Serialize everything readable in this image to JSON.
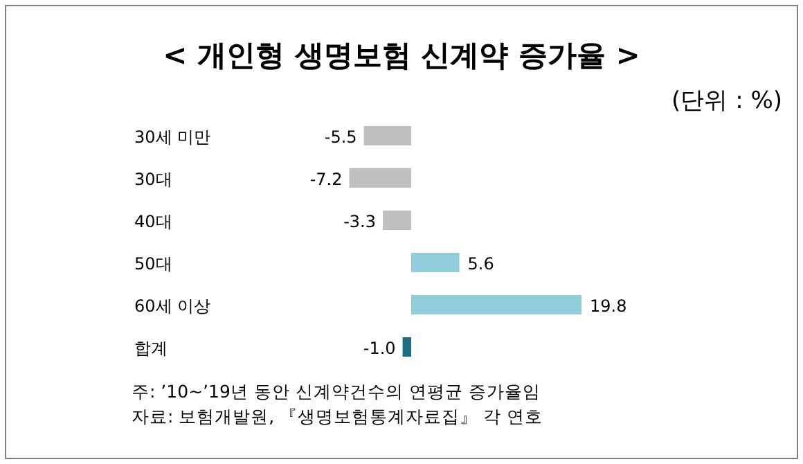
{
  "chart_data": {
    "type": "bar",
    "orientation": "horizontal",
    "title": "< 개인형 생명보험 신계약 증가율 >",
    "subtitle": "(단위 : %)",
    "categories": [
      "30세 미만",
      "30대",
      "40대",
      "50대",
      "60세 이상",
      "합계"
    ],
    "values": [
      -5.5,
      -7.2,
      -3.3,
      5.6,
      19.8,
      -1.0
    ],
    "colors": [
      "#bfbfbf",
      "#bfbfbf",
      "#bfbfbf",
      "#92cddc",
      "#92cddc",
      "#1f6e80"
    ],
    "value_labels": [
      "-5.5",
      "-7.2",
      "-3.3",
      "5.6",
      "19.8",
      "-1.0"
    ],
    "annotations": [
      "주: ’10~’19년 동안 신계약건수의 연평균 증가율임",
      "자료: 보험개발원, 『생명보험통계자료집』 각 연호"
    ]
  }
}
